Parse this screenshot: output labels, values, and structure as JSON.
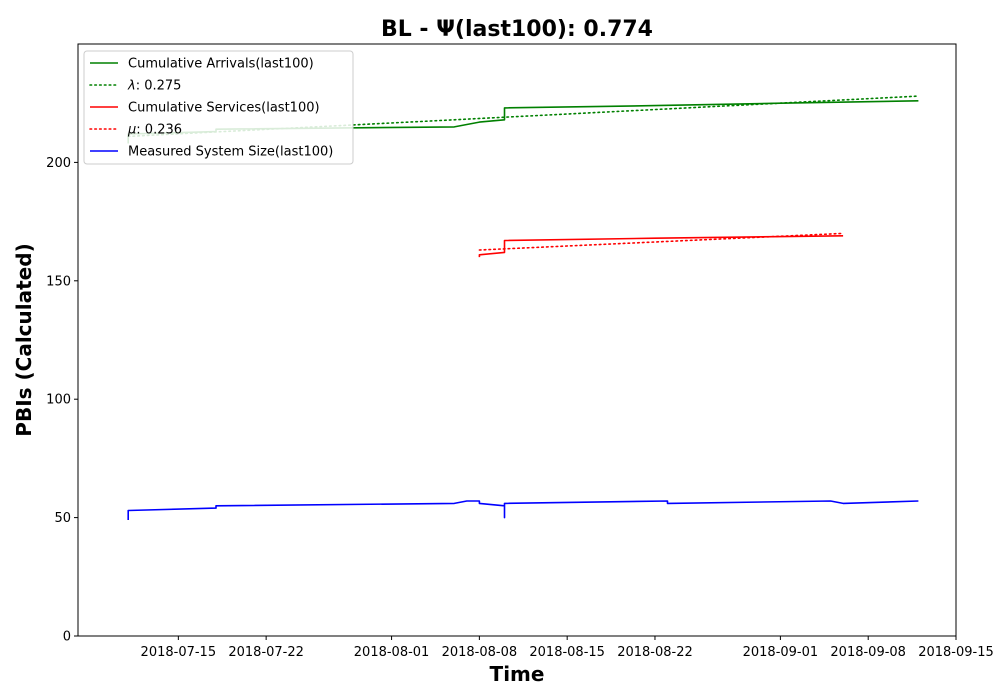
{
  "chart_data": {
    "type": "line",
    "title": "BL -  Ψ(last100): 0.774",
    "xlabel": "Time",
    "ylabel": "PBIs (Calculated)",
    "x_axis_type": "date",
    "xlim": [
      "2018-07-07",
      "2018-09-15"
    ],
    "ylim": [
      0,
      250
    ],
    "x_ticks": [
      "2018-07-15",
      "2018-07-22",
      "2018-08-01",
      "2018-08-08",
      "2018-08-15",
      "2018-08-22",
      "2018-09-01",
      "2018-09-08",
      "2018-09-15"
    ],
    "y_ticks": [
      0,
      50,
      100,
      150,
      200
    ],
    "grid": false,
    "legend_placement": "top-left",
    "series": [
      {
        "name": "Cumulative Arrivals(last100)",
        "color": "#008000",
        "style": "solid",
        "points": [
          [
            "2018-07-11",
            208
          ],
          [
            "2018-07-11",
            212
          ],
          [
            "2018-07-18",
            213
          ],
          [
            "2018-07-18",
            214
          ],
          [
            "2018-08-06",
            215
          ],
          [
            "2018-08-07",
            216
          ],
          [
            "2018-08-08",
            217
          ],
          [
            "2018-08-10",
            218
          ],
          [
            "2018-08-10",
            223
          ],
          [
            "2018-08-22",
            224
          ],
          [
            "2018-09-01",
            225
          ],
          [
            "2018-09-12",
            226
          ]
        ]
      },
      {
        "name": "λ: 0.275",
        "label_symbol": "λ",
        "label_rest": ": 0.275",
        "color": "#008000",
        "style": "dotted",
        "points": [
          [
            "2018-07-11",
            211
          ],
          [
            "2018-09-12",
            228
          ]
        ]
      },
      {
        "name": "Cumulative Services(last100)",
        "color": "#ff0000",
        "style": "solid",
        "points": [
          [
            "2018-08-08",
            160
          ],
          [
            "2018-08-08",
            161
          ],
          [
            "2018-08-10",
            162
          ],
          [
            "2018-08-10",
            167
          ],
          [
            "2018-08-22",
            168
          ],
          [
            "2018-09-06",
            169
          ]
        ]
      },
      {
        "name": "μ: 0.236",
        "label_symbol": "μ",
        "label_rest": ": 0.236",
        "color": "#ff0000",
        "style": "dotted",
        "points": [
          [
            "2018-08-08",
            163
          ],
          [
            "2018-09-06",
            170
          ]
        ]
      },
      {
        "name": "Measured System Size(last100)",
        "color": "#0000ff",
        "style": "solid",
        "points": [
          [
            "2018-07-11",
            49
          ],
          [
            "2018-07-11",
            53
          ],
          [
            "2018-07-18",
            54
          ],
          [
            "2018-07-18",
            55
          ],
          [
            "2018-08-06",
            56
          ],
          [
            "2018-08-07",
            57
          ],
          [
            "2018-08-08",
            57
          ],
          [
            "2018-08-08",
            56
          ],
          [
            "2018-08-10",
            55
          ],
          [
            "2018-08-10",
            50
          ],
          [
            "2018-08-10",
            51
          ],
          [
            "2018-08-10",
            56
          ],
          [
            "2018-08-23",
            57
          ],
          [
            "2018-08-23",
            56
          ],
          [
            "2018-09-05",
            57
          ],
          [
            "2018-09-06",
            56
          ],
          [
            "2018-09-12",
            57
          ]
        ]
      }
    ]
  }
}
